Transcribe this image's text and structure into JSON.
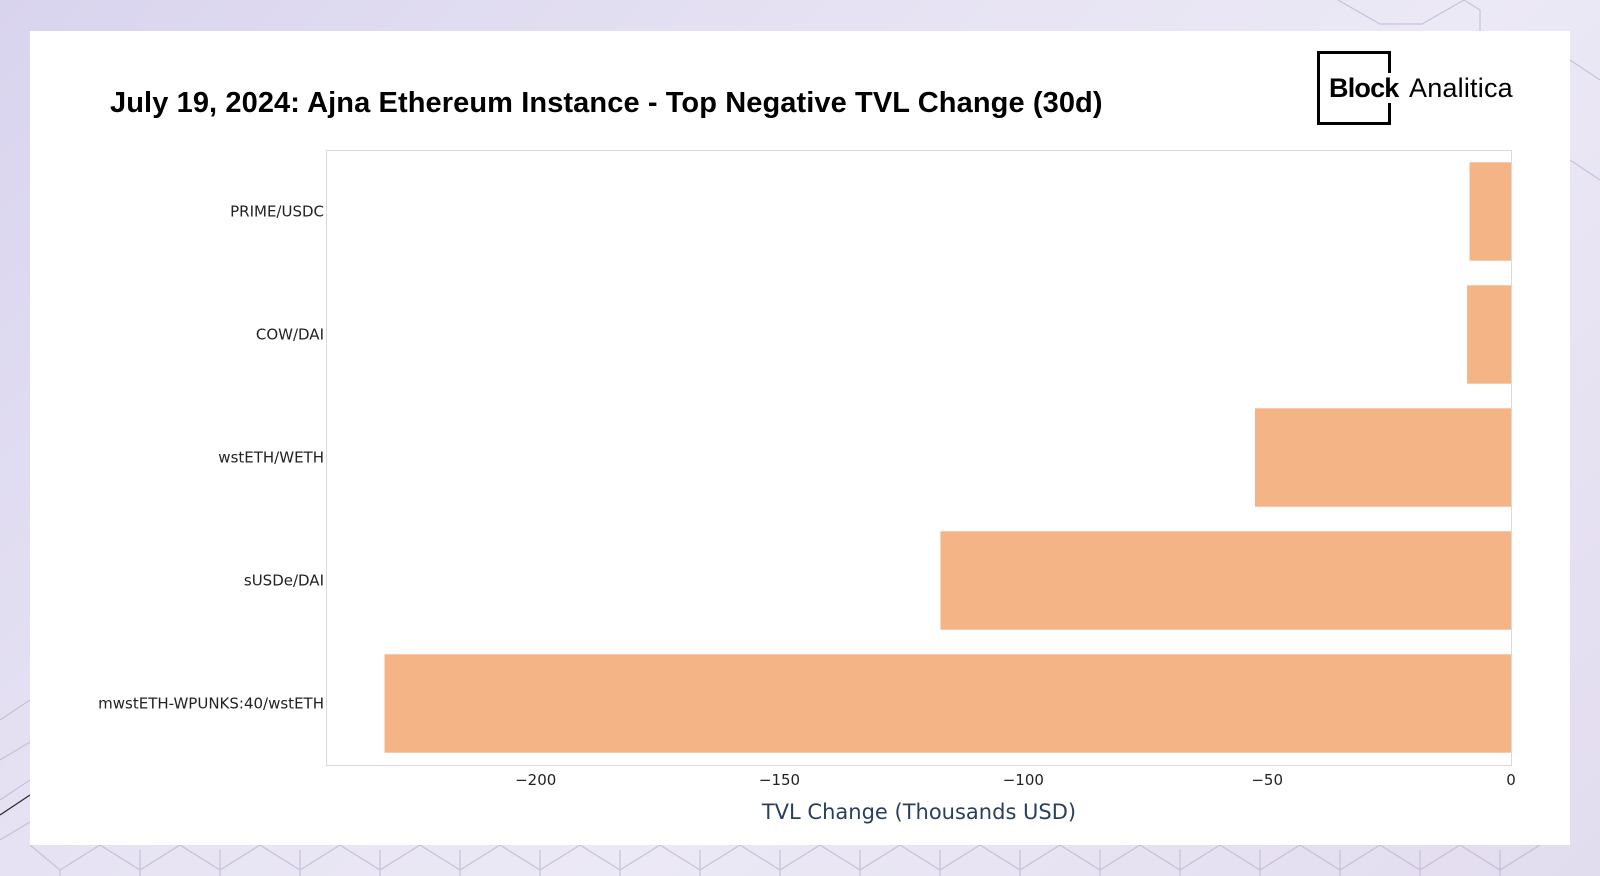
{
  "brand": {
    "block": "Block",
    "analitica": "Analitica"
  },
  "colors": {
    "bar": "#f5b485",
    "axis_title": "#2a3f5f",
    "tick_text": "#222222",
    "frame": "#dadada"
  },
  "chart_data": {
    "type": "bar",
    "orientation": "horizontal",
    "title": "July 19, 2024: Ajna Ethereum Instance - Top Negative TVL Change (30d)",
    "xlabel": "TVL Change (Thousands USD)",
    "ylabel": "",
    "categories": [
      "PRIME/USDC",
      "COW/DAI",
      "wstETH/WETH",
      "sUSDe/DAI",
      "mwstETH-WPUNKS:40/wstETH"
    ],
    "values": [
      -8.5,
      -9,
      -52.5,
      -117,
      -231
    ],
    "xlim": [
      -243,
      0
    ],
    "xticks": [
      -200,
      -150,
      -100,
      -50,
      0
    ],
    "xtick_labels": [
      "−200",
      "−150",
      "−100",
      "−50",
      "0"
    ],
    "grid": false,
    "legend": "none"
  }
}
